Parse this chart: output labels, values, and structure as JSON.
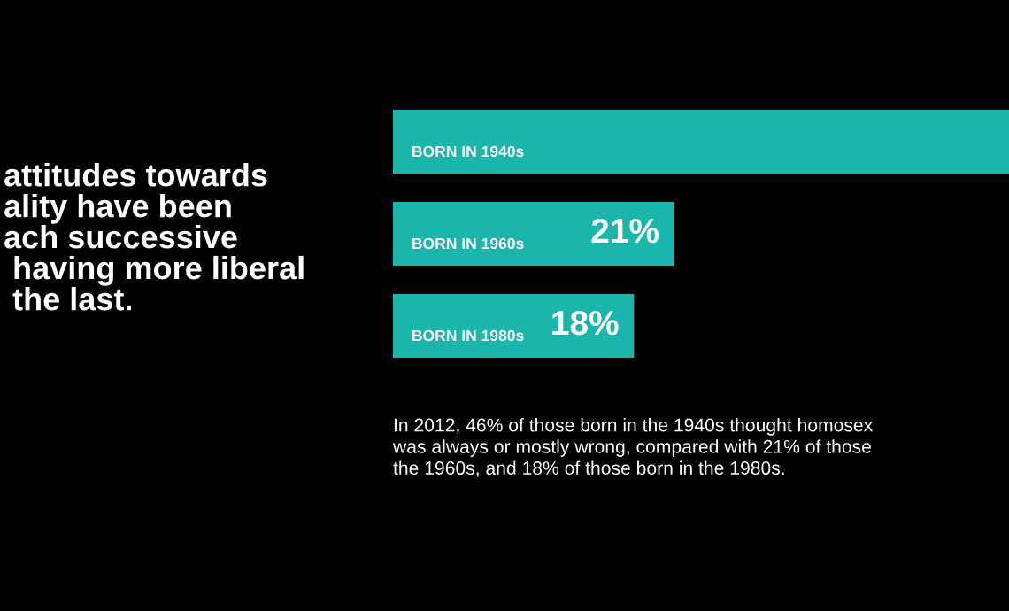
{
  "chart_data": {
    "type": "bar",
    "orientation": "horizontal",
    "title": "attitudes towards\nality have been\nach successive\n having more liberal\n the last.",
    "categories": [
      "BORN IN 1940s",
      "BORN IN 1960s",
      "BORN IN 1980s"
    ],
    "values": [
      46,
      21,
      18
    ],
    "value_labels": [
      null,
      "21%",
      "18%"
    ],
    "color": "#1ab5ab",
    "xlim": [
      0,
      46
    ],
    "annotations": [
      "In 2012, 46% of those born in the 1940s thought homosex\nwas always or mostly wrong, compared with 21% of those\nthe 1960s, and 18% of those born in the 1980s."
    ]
  }
}
